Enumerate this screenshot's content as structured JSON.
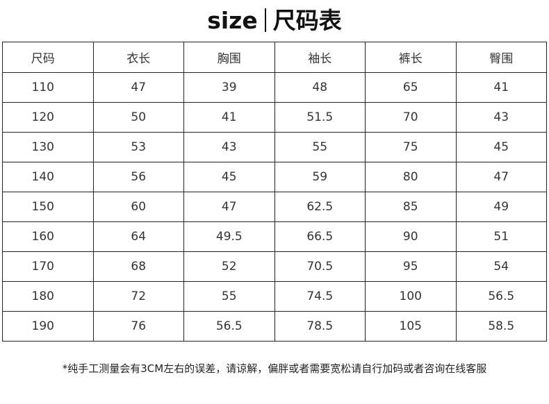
{
  "title": {
    "en": "size",
    "zh": "尺码表"
  },
  "table": {
    "headers": [
      "尺码",
      "衣长",
      "胸围",
      "袖长",
      "裤长",
      "臀围"
    ],
    "rows": [
      [
        "110",
        "47",
        "39",
        "48",
        "65",
        "41"
      ],
      [
        "120",
        "50",
        "41",
        "51.5",
        "70",
        "43"
      ],
      [
        "130",
        "53",
        "43",
        "55",
        "75",
        "45"
      ],
      [
        "140",
        "56",
        "45",
        "59",
        "80",
        "47"
      ],
      [
        "150",
        "60",
        "47",
        "62.5",
        "85",
        "49"
      ],
      [
        "160",
        "64",
        "49.5",
        "66.5",
        "90",
        "51"
      ],
      [
        "170",
        "68",
        "52",
        "70.5",
        "95",
        "54"
      ],
      [
        "180",
        "72",
        "55",
        "74.5",
        "100",
        "56.5"
      ],
      [
        "190",
        "76",
        "56.5",
        "78.5",
        "105",
        "58.5"
      ]
    ]
  },
  "note": "*纯手工测量会有3CM左右的误差，请谅解，偏胖或者需要宽松请自行加码或者咨询在线客服"
}
